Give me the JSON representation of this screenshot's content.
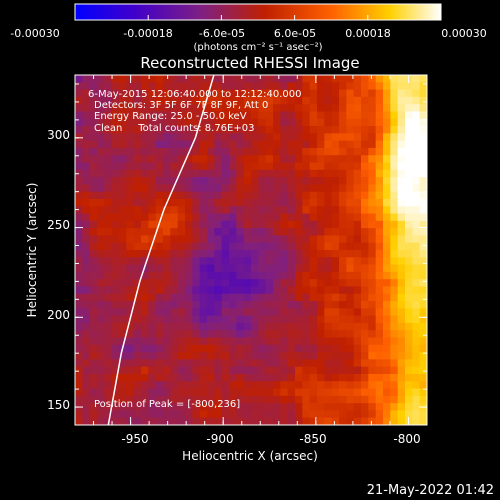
{
  "chart_data": {
    "type": "heatmap",
    "title": "Reconstructed RHESSI Image",
    "xlabel": "Heliocentric X (arcsec)",
    "ylabel": "Heliocentric Y (arcsec)",
    "xlim": [
      -980,
      -790
    ],
    "ylim": [
      140,
      335
    ],
    "x_ticks": [
      "-950",
      "-900",
      "-850",
      "-800"
    ],
    "y_ticks": [
      "150",
      "200",
      "250",
      "300"
    ],
    "colorbar": {
      "min": -0.0003,
      "max": 0.0003,
      "tick_labels": [
        "-0.00030",
        "-0.00018",
        "-6.0e-05",
        "6.0e-05",
        "0.00018",
        "0.00030"
      ],
      "unit_label": "(photons cm⁻² s⁻¹ asec⁻²)",
      "colors": [
        "#0000ff",
        "#4000cc",
        "#802080",
        "#c02000",
        "#ff6000",
        "#ffd000",
        "#ffffff"
      ]
    },
    "annotations": [
      "6-May-2015 12:06:40.000 to 12:12:40.000",
      "Detectors: 3F 5F 6F 7F 8F 9F, Att 0",
      "Energy Range: 25.0 - 50.0 keV",
      "Clean     Total counts: 8.76E+03"
    ],
    "peak_label": "Position of Peak = [-800,236]",
    "peak": [
      -800,
      236
    ],
    "limb_curve": [
      [
        -962,
        140
      ],
      [
        -955,
        180
      ],
      [
        -945,
        220
      ],
      [
        -932,
        260
      ],
      [
        -915,
        300
      ],
      [
        -905,
        335
      ]
    ]
  },
  "footer": {
    "date": "21-May-2022 01:42"
  }
}
